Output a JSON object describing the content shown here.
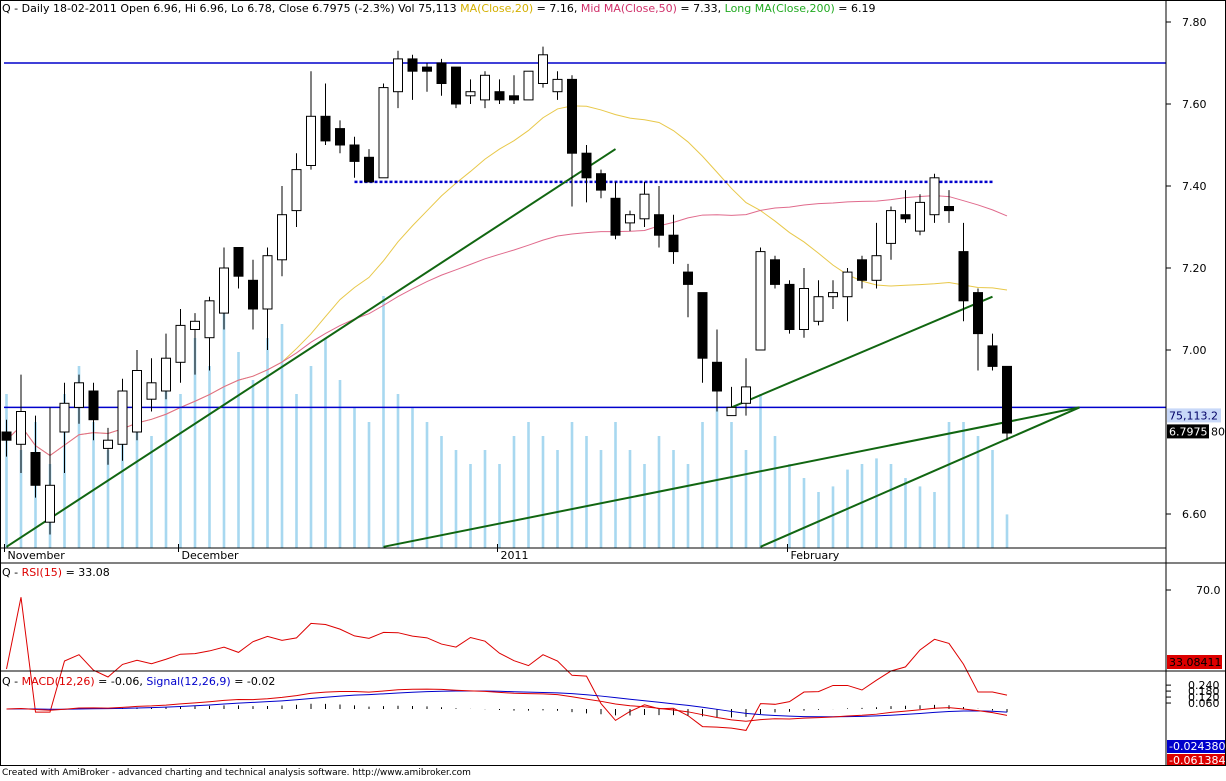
{
  "header": {
    "price": {
      "base": "Q - Daily 18-02-2011 Open 6.96, Hi 6.96, Lo 6.78, Close 6.7975 (-2.3%) Vol 75,113",
      "ma20_name": "MA(Close,20)",
      "ma20_value": " = 7.16, ",
      "ma50_name": "Mid MA(Close,50)",
      "ma50_value": " = 7.33, ",
      "ma200_name": "Long MA(Close,200)",
      "ma200_value": " = 6.19"
    },
    "rsi": {
      "prefix": "Q - ",
      "name": "RSI(15)",
      "value": " = 33.08"
    },
    "macd": {
      "prefix": "Q - ",
      "name": "MACD(12,26)",
      "value": " = -0.06, ",
      "signal_name": "Signal(12,26,9)",
      "signal_value": " = -0.02"
    }
  },
  "colors": {
    "background": "#ffffff",
    "up_candle": "#ffffff",
    "down_candle": "#000000",
    "volume": "#a8d8f0",
    "ma20": "#e8c84a",
    "ma50": "#e06a8c",
    "ma200": "#22aa22",
    "trendline": "#116611",
    "level_line": "#0000cc",
    "rsi": "#dd0000",
    "macd": "#dd0000",
    "signal": "#0000cc"
  },
  "chart_data": [
    {
      "type": "candlestick",
      "title": "Q - Daily 18-02-2011",
      "y_ticks": [
        "7.80",
        "7.60",
        "7.40",
        "7.20",
        "7.00",
        "6.60"
      ],
      "ylim": [
        6.52,
        7.86
      ],
      "x_tick_labels": [
        {
          "label": "November",
          "index": 0
        },
        {
          "label": "December",
          "index": 12
        },
        {
          "label": "2011",
          "index": 34
        },
        {
          "label": "February",
          "index": 54
        }
      ],
      "ohlc": [
        [
          6.8,
          6.83,
          6.74,
          6.78
        ],
        [
          6.77,
          6.94,
          6.7,
          6.85
        ],
        [
          6.75,
          6.84,
          6.64,
          6.67
        ],
        [
          6.58,
          6.86,
          6.55,
          6.67
        ],
        [
          6.8,
          6.92,
          6.7,
          6.87
        ],
        [
          6.86,
          6.94,
          6.82,
          6.92
        ],
        [
          6.9,
          6.92,
          6.78,
          6.83
        ],
        [
          6.76,
          6.81,
          6.72,
          6.78
        ],
        [
          6.77,
          6.93,
          6.73,
          6.9
        ],
        [
          6.8,
          7.0,
          6.78,
          6.95
        ],
        [
          6.88,
          6.98,
          6.85,
          6.92
        ],
        [
          6.9,
          7.04,
          6.88,
          6.98
        ],
        [
          6.97,
          7.1,
          6.92,
          7.06
        ],
        [
          7.05,
          7.09,
          6.94,
          7.07
        ],
        [
          7.03,
          7.13,
          6.95,
          7.12
        ],
        [
          7.09,
          7.25,
          7.05,
          7.2
        ],
        [
          7.25,
          7.25,
          7.15,
          7.18
        ],
        [
          7.17,
          7.22,
          7.05,
          7.1
        ],
        [
          7.1,
          7.25,
          7.0,
          7.23
        ],
        [
          7.22,
          7.4,
          7.18,
          7.33
        ],
        [
          7.34,
          7.48,
          7.3,
          7.44
        ],
        [
          7.45,
          7.68,
          7.44,
          7.57
        ],
        [
          7.57,
          7.65,
          7.5,
          7.51
        ],
        [
          7.54,
          7.56,
          7.48,
          7.5
        ],
        [
          7.5,
          7.52,
          7.42,
          7.46
        ],
        [
          7.47,
          7.49,
          7.41,
          7.41
        ],
        [
          7.42,
          7.65,
          7.42,
          7.64
        ],
        [
          7.63,
          7.73,
          7.59,
          7.71
        ],
        [
          7.71,
          7.72,
          7.61,
          7.68
        ],
        [
          7.69,
          7.7,
          7.63,
          7.68
        ],
        [
          7.7,
          7.71,
          7.62,
          7.65
        ],
        [
          7.69,
          7.69,
          7.59,
          7.6
        ],
        [
          7.62,
          7.66,
          7.6,
          7.63
        ],
        [
          7.61,
          7.68,
          7.59,
          7.67
        ],
        [
          7.63,
          7.66,
          7.6,
          7.61
        ],
        [
          7.62,
          7.67,
          7.6,
          7.61
        ],
        [
          7.61,
          7.68,
          7.61,
          7.68
        ],
        [
          7.65,
          7.74,
          7.64,
          7.72
        ],
        [
          7.63,
          7.68,
          7.61,
          7.66
        ],
        [
          7.66,
          7.67,
          7.35,
          7.48
        ],
        [
          7.48,
          7.5,
          7.36,
          7.42
        ],
        [
          7.43,
          7.44,
          7.37,
          7.39
        ],
        [
          7.37,
          7.41,
          7.27,
          7.28
        ],
        [
          7.31,
          7.34,
          7.29,
          7.33
        ],
        [
          7.32,
          7.41,
          7.3,
          7.38
        ],
        [
          7.33,
          7.4,
          7.25,
          7.28
        ],
        [
          7.28,
          7.33,
          7.21,
          7.24
        ],
        [
          7.19,
          7.21,
          7.08,
          7.16
        ],
        [
          7.14,
          7.14,
          6.92,
          6.98
        ],
        [
          6.97,
          7.05,
          6.85,
          6.9
        ],
        [
          6.84,
          6.91,
          6.84,
          6.86
        ],
        [
          6.87,
          6.98,
          6.84,
          6.91
        ],
        [
          7.0,
          7.25,
          7.0,
          7.24
        ],
        [
          7.22,
          7.23,
          7.15,
          7.16
        ],
        [
          7.16,
          7.17,
          7.04,
          7.05
        ],
        [
          7.05,
          7.2,
          7.03,
          7.15
        ],
        [
          7.07,
          7.17,
          7.06,
          7.13
        ],
        [
          7.13,
          7.17,
          7.1,
          7.14
        ],
        [
          7.13,
          7.2,
          7.07,
          7.19
        ],
        [
          7.22,
          7.23,
          7.15,
          7.17
        ],
        [
          7.17,
          7.31,
          7.15,
          7.23
        ],
        [
          7.26,
          7.35,
          7.22,
          7.34
        ],
        [
          7.33,
          7.39,
          7.31,
          7.32
        ],
        [
          7.29,
          7.38,
          7.28,
          7.36
        ],
        [
          7.33,
          7.43,
          7.31,
          7.42
        ],
        [
          7.35,
          7.39,
          7.31,
          7.34
        ],
        [
          7.24,
          7.31,
          7.07,
          7.12
        ],
        [
          7.14,
          7.15,
          6.95,
          7.04
        ],
        [
          7.01,
          7.04,
          6.95,
          6.96
        ],
        [
          6.96,
          6.96,
          6.78,
          6.7975
        ]
      ],
      "levels": [
        7.7,
        6.86,
        7.41
      ],
      "volume_label": "75,113.2",
      "close_label": "6.7975",
      "right_edge_label_fragment": "80"
    },
    {
      "type": "line",
      "name": "RSI(15)",
      "y_ticks": [
        "70.0"
      ],
      "value_label": "33.08411"
    },
    {
      "type": "line",
      "name": "MACD(12,26)",
      "y_ticks": [
        "0.240",
        "0.180",
        "0.120",
        "0.060"
      ],
      "macd_label": "-0.061384",
      "signal_label": "-0.024380"
    }
  ],
  "footer": "Created with AmiBroker - advanced charting and technical analysis software. http://www.amibroker.com"
}
